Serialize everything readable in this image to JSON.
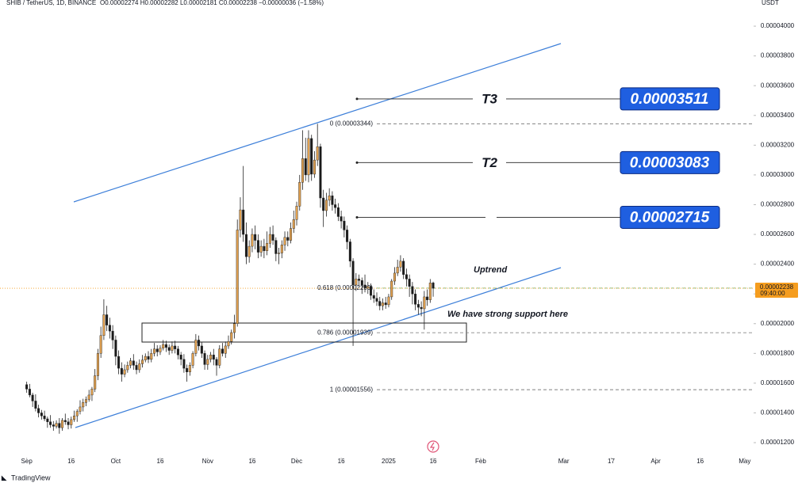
{
  "chart_data": {
    "type": "candlestick",
    "currency": "USDT",
    "header": "O0.00002274 H0.00002282 L0.00002181 C0.00002238 −0.00000036 (−1.58%)",
    "branding": "TradingView",
    "x": [
      "Sep 1",
      "Sep 2",
      "Sep 3",
      "Sep 4",
      "Sep 5",
      "Sep 6",
      "Sep 7",
      "Sep 8",
      "Sep 9",
      "Sep 10",
      "Sep 11",
      "Sep 12",
      "Sep 13",
      "Sep 14",
      "Sep 15",
      "Sep 16",
      "Sep 17",
      "Sep 18",
      "Sep 19",
      "Sep 20",
      "Sep 21",
      "Sep 22",
      "Sep 23",
      "Sep 24",
      "Sep 25",
      "Sep 26",
      "Sep 27",
      "Sep 28",
      "Sep 29",
      "Sep 30",
      "Oct 1",
      "Oct 2",
      "Oct 3",
      "Oct 4",
      "Oct 5",
      "Oct 6",
      "Oct 7",
      "Oct 8",
      "Oct 9",
      "Oct 10",
      "Oct 11",
      "Oct 12",
      "Oct 13",
      "Oct 14",
      "Oct 15",
      "Oct 16",
      "Oct 17",
      "Oct 18",
      "Oct 19",
      "Oct 20",
      "Oct 21",
      "Oct 22",
      "Oct 23",
      "Oct 24",
      "Oct 25",
      "Oct 26",
      "Oct 27",
      "Oct 28",
      "Oct 29",
      "Oct 30",
      "Oct 31",
      "Nov 1",
      "Nov 2",
      "Nov 3",
      "Nov 4",
      "Nov 5",
      "Nov 6",
      "Nov 7",
      "Nov 8",
      "Nov 9",
      "Nov 10",
      "Nov 11",
      "Nov 12",
      "Nov 13",
      "Nov 14",
      "Nov 15",
      "Nov 16",
      "Nov 17",
      "Nov 18",
      "Nov 19",
      "Nov 20",
      "Nov 21",
      "Nov 22",
      "Nov 23",
      "Nov 24",
      "Nov 25",
      "Nov 26",
      "Nov 27",
      "Nov 28",
      "Nov 29",
      "Nov 30",
      "Dec 1",
      "Dec 2",
      "Dec 3",
      "Dec 4",
      "Dec 5",
      "Dec 6",
      "Dec 7",
      "Dec 8",
      "Dec 9",
      "Dec 10",
      "Dec 11",
      "Dec 12",
      "Dec 13",
      "Dec 14",
      "Dec 15",
      "Dec 16",
      "Dec 17",
      "Dec 18",
      "Dec 19",
      "Dec 20",
      "Dec 21",
      "Dec 22",
      "Dec 23",
      "Dec 24",
      "Dec 25",
      "Dec 26",
      "Dec 27",
      "Dec 28",
      "Dec 29",
      "Dec 30",
      "Dec 31",
      "Jan 1",
      "Jan 2",
      "Jan 3",
      "Jan 4",
      "Jan 5",
      "Jan 6",
      "Jan 7",
      "Jan 8",
      "Jan 9",
      "Jan 10",
      "Jan 11",
      "Jan 12",
      "Jan 13",
      "Jan 14",
      "Jan 15",
      "Jan 16"
    ],
    "series": [
      {
        "name": "SHIB / TetherUS, 1D, BINANCE",
        "up_color": "#e0a050",
        "down_color": "#1a1a1a",
        "open": [
          1.59e-05,
          1.56e-05,
          1.52e-05,
          1.48e-05,
          1.43e-05,
          1.4e-05,
          1.38e-05,
          1.36e-05,
          1.34e-05,
          1.32e-05,
          1.31e-05,
          1.33e-05,
          1.3e-05,
          1.35e-05,
          1.34e-05,
          1.32e-05,
          1.355e-05,
          1.38e-05,
          1.41e-05,
          1.44e-05,
          1.47e-05,
          1.49e-05,
          1.52e-05,
          1.56e-05,
          1.65e-05,
          1.8e-05,
          1.92e-05,
          2.06e-05,
          1.99e-05,
          1.95e-05,
          1.89e-05,
          1.78e-05,
          1.7e-05,
          1.66e-05,
          1.69e-05,
          1.72e-05,
          1.75e-05,
          1.72e-05,
          1.69e-05,
          1.73e-05,
          1.755e-05,
          1.78e-05,
          1.76e-05,
          1.8e-05,
          1.83e-05,
          1.81e-05,
          1.835e-05,
          1.86e-05,
          1.84e-05,
          1.82e-05,
          1.85e-05,
          1.83e-05,
          1.79e-05,
          1.76e-05,
          1.7e-05,
          1.675e-05,
          1.72e-05,
          1.8e-05,
          1.89e-05,
          1.85e-05,
          1.8e-05,
          1.725e-05,
          1.76e-05,
          1.79e-05,
          1.76e-05,
          1.72e-05,
          1.83e-05,
          1.8e-05,
          1.85e-05,
          1.88e-05,
          1.94e-05,
          2e-05,
          2.63e-05,
          2.765e-05,
          2.6e-05,
          2.45e-05,
          2.52e-05,
          2.6e-05,
          2.56e-05,
          2.48e-05,
          2.52e-05,
          2.49e-05,
          2.54e-05,
          2.6e-05,
          2.56e-05,
          2.47e-05,
          2.475e-05,
          2.53e-05,
          2.58e-05,
          2.56e-05,
          2.64e-05,
          2.7e-05,
          2.79e-05,
          2.95e-05,
          3.11e-05,
          3e-05,
          3.245e-05,
          3.005e-05,
          3.1e-05,
          3.19e-05,
          2.845e-05,
          2.76e-05,
          2.83e-05,
          2.86e-05,
          2.8e-05,
          2.78e-05,
          2.72e-05,
          2.69e-05,
          2.63e-05,
          2.55e-05,
          2.42e-05,
          2.26e-05,
          2.3e-05,
          2.29e-05,
          2.26e-05,
          2.24e-05,
          2.25e-05,
          2.19e-05,
          2.17e-05,
          2.15e-05,
          2.12e-05,
          2.14e-05,
          2.127e-05,
          2.18e-05,
          2.286e-05,
          2.34e-05,
          2.38e-05,
          2.42e-05,
          2.33e-05,
          2.3e-05,
          2.25e-05,
          2.2e-05,
          2.13e-05,
          2.11e-05,
          2.1e-05,
          2.18e-05,
          2.16e-05,
          2.274e-05
        ],
        "high": [
          1.61e-05,
          1.595e-05,
          1.535e-05,
          1.525e-05,
          1.455e-05,
          1.42e-05,
          1.415e-05,
          1.375e-05,
          1.385e-05,
          1.345e-05,
          1.35e-05,
          1.365e-05,
          1.365e-05,
          1.395e-05,
          1.365e-05,
          1.375e-05,
          1.415e-05,
          1.425e-05,
          1.485e-05,
          1.495e-05,
          1.51e-05,
          1.555e-05,
          1.575e-05,
          1.695e-05,
          1.83e-05,
          1.98e-05,
          2.164e-05,
          2.12e-05,
          2.04e-05,
          1.99e-05,
          1.92e-05,
          1.82e-05,
          1.74e-05,
          1.725e-05,
          1.745e-05,
          1.77e-05,
          1.795e-05,
          1.745e-05,
          1.76e-05,
          1.79e-05,
          1.8e-05,
          1.815e-05,
          1.83e-05,
          1.87e-05,
          1.855e-05,
          1.855e-05,
          1.89e-05,
          1.885e-05,
          1.86e-05,
          1.88e-05,
          1.885e-05,
          1.85e-05,
          1.81e-05,
          1.795e-05,
          1.725e-05,
          1.74e-05,
          1.815e-05,
          1.93e-05,
          1.92e-05,
          1.875e-05,
          1.82e-05,
          1.79e-05,
          1.81e-05,
          1.83e-05,
          1.775e-05,
          1.855e-05,
          1.87e-05,
          1.88e-05,
          1.92e-05,
          1.96e-05,
          2.06e-05,
          2.7e-05,
          2.85e-05,
          3.06e-05,
          2.68e-05,
          2.56e-05,
          2.64e-05,
          2.66e-05,
          2.6e-05,
          2.56e-05,
          2.57e-05,
          2.62e-05,
          2.65e-05,
          2.66e-05,
          2.58e-05,
          2.51e-05,
          2.56e-05,
          2.62e-05,
          2.62e-05,
          2.68e-05,
          2.76e-05,
          2.82e-05,
          3e-05,
          3.3e-05,
          3.25e-05,
          3.3e-05,
          3.27e-05,
          3.16e-05,
          3.344e-05,
          3.21e-05,
          2.9e-05,
          2.88e-05,
          2.91e-05,
          2.89e-05,
          2.84e-05,
          2.81e-05,
          2.76e-05,
          2.72e-05,
          2.66e-05,
          2.57e-05,
          2.44e-05,
          2.34e-05,
          2.33e-05,
          2.31e-05,
          2.33e-05,
          2.28e-05,
          2.27e-05,
          2.23e-05,
          2.21e-05,
          2.18e-05,
          2.17e-05,
          2.18e-05,
          2.2e-05,
          2.3e-05,
          2.38e-05,
          2.43e-05,
          2.46e-05,
          2.44e-05,
          2.37e-05,
          2.33e-05,
          2.28e-05,
          2.23e-05,
          2.16e-05,
          2.15e-05,
          2.22e-05,
          2.23e-05,
          2.3e-05,
          2.282e-05
        ],
        "low": [
          1.535e-05,
          1.505e-05,
          1.44e-05,
          1.41e-05,
          1.37e-05,
          1.355e-05,
          1.345e-05,
          1.3e-05,
          1.3e-05,
          1.28e-05,
          1.295e-05,
          1.26e-05,
          1.28e-05,
          1.32e-05,
          1.29e-05,
          1.295e-05,
          1.34e-05,
          1.34e-05,
          1.39e-05,
          1.41e-05,
          1.445e-05,
          1.475e-05,
          1.48e-05,
          1.54e-05,
          1.62e-05,
          1.77e-05,
          1.89e-05,
          1.95e-05,
          1.9e-05,
          1.83e-05,
          1.72e-05,
          1.66e-05,
          1.61e-05,
          1.64e-05,
          1.67e-05,
          1.7e-05,
          1.69e-05,
          1.66e-05,
          1.67e-05,
          1.705e-05,
          1.74e-05,
          1.735e-05,
          1.74e-05,
          1.78e-05,
          1.78e-05,
          1.79e-05,
          1.82e-05,
          1.81e-05,
          1.79e-05,
          1.8e-05,
          1.8e-05,
          1.76e-05,
          1.72e-05,
          1.67e-05,
          1.61e-05,
          1.65e-05,
          1.7e-05,
          1.78e-05,
          1.82e-05,
          1.77e-05,
          1.69e-05,
          1.69e-05,
          1.74e-05,
          1.72e-05,
          1.65e-05,
          1.7e-05,
          1.78e-05,
          1.77e-05,
          1.83e-05,
          1.86e-05,
          1.9e-05,
          1.98e-05,
          2.58e-05,
          2.55e-05,
          2.4e-05,
          2.41e-05,
          2.48e-05,
          2.5e-05,
          2.44e-05,
          2.45e-05,
          2.44e-05,
          2.46e-05,
          2.51e-05,
          2.53e-05,
          2.42e-05,
          2.4e-05,
          2.44e-05,
          2.49e-05,
          2.52e-05,
          2.54e-05,
          2.61e-05,
          2.66e-05,
          2.76e-05,
          2.9e-05,
          2.96e-05,
          2.95e-05,
          2.96e-05,
          2.98e-05,
          3.06e-05,
          2.78e-05,
          2.65e-05,
          2.72e-05,
          2.79e-05,
          2.76e-05,
          2.74e-05,
          2.69e-05,
          2.64e-05,
          2.58e-05,
          2.5e-05,
          2.38e-05,
          1.85e-05,
          2.22e-05,
          2.25e-05,
          2.2e-05,
          2.21e-05,
          2.2e-05,
          2.16e-05,
          2.14e-05,
          2.12e-05,
          2.09e-05,
          2.09e-05,
          2.1e-05,
          2.11e-05,
          2.16e-05,
          2.26e-05,
          2.32e-05,
          2.35e-05,
          2.3e-05,
          2.25e-05,
          2.18e-05,
          2.13e-05,
          2.09e-05,
          2.06e-05,
          2.05e-05,
          1.96e-05,
          2.12e-05,
          2.14e-05,
          2.181e-05
        ],
        "close": [
          1.56e-05,
          1.52e-05,
          1.48e-05,
          1.43e-05,
          1.4e-05,
          1.38e-05,
          1.36e-05,
          1.34e-05,
          1.32e-05,
          1.31e-05,
          1.33e-05,
          1.3e-05,
          1.35e-05,
          1.34e-05,
          1.32e-05,
          1.355e-05,
          1.38e-05,
          1.41e-05,
          1.44e-05,
          1.47e-05,
          1.49e-05,
          1.52e-05,
          1.56e-05,
          1.65e-05,
          1.8e-05,
          1.92e-05,
          2.06e-05,
          1.99e-05,
          1.95e-05,
          1.89e-05,
          1.78e-05,
          1.7e-05,
          1.66e-05,
          1.69e-05,
          1.72e-05,
          1.75e-05,
          1.72e-05,
          1.69e-05,
          1.73e-05,
          1.755e-05,
          1.78e-05,
          1.76e-05,
          1.8e-05,
          1.83e-05,
          1.81e-05,
          1.835e-05,
          1.86e-05,
          1.84e-05,
          1.82e-05,
          1.85e-05,
          1.83e-05,
          1.79e-05,
          1.76e-05,
          1.7e-05,
          1.675e-05,
          1.72e-05,
          1.8e-05,
          1.89e-05,
          1.85e-05,
          1.8e-05,
          1.725e-05,
          1.76e-05,
          1.79e-05,
          1.76e-05,
          1.72e-05,
          1.83e-05,
          1.8e-05,
          1.85e-05,
          1.88e-05,
          1.94e-05,
          2e-05,
          2.63e-05,
          2.765e-05,
          2.6e-05,
          2.45e-05,
          2.52e-05,
          2.6e-05,
          2.56e-05,
          2.48e-05,
          2.52e-05,
          2.49e-05,
          2.54e-05,
          2.6e-05,
          2.56e-05,
          2.47e-05,
          2.475e-05,
          2.53e-05,
          2.58e-05,
          2.56e-05,
          2.64e-05,
          2.7e-05,
          2.79e-05,
          2.95e-05,
          3.11e-05,
          3e-05,
          3.245e-05,
          3.005e-05,
          3.1e-05,
          3.19e-05,
          2.845e-05,
          2.76e-05,
          2.83e-05,
          2.86e-05,
          2.8e-05,
          2.78e-05,
          2.72e-05,
          2.69e-05,
          2.63e-05,
          2.55e-05,
          2.42e-05,
          2.26e-05,
          2.3e-05,
          2.29e-05,
          2.26e-05,
          2.24e-05,
          2.25e-05,
          2.19e-05,
          2.17e-05,
          2.15e-05,
          2.12e-05,
          2.14e-05,
          2.127e-05,
          2.18e-05,
          2.286e-05,
          2.34e-05,
          2.38e-05,
          2.42e-05,
          2.33e-05,
          2.3e-05,
          2.25e-05,
          2.2e-05,
          2.13e-05,
          2.11e-05,
          2.1e-05,
          2.18e-05,
          2.16e-05,
          2.274e-05,
          2.238e-05
        ]
      }
    ],
    "xlim": [
      "Aug 23",
      "May 4"
    ],
    "xticks": [
      {
        "value": "Sep 1",
        "label": "Sep"
      },
      {
        "value": "Sep 16",
        "label": "16"
      },
      {
        "value": "Oct 1",
        "label": "Oct"
      },
      {
        "value": "Oct 16",
        "label": "16"
      },
      {
        "value": "Nov 1",
        "label": "Nov"
      },
      {
        "value": "Nov 16",
        "label": "16"
      },
      {
        "value": "Dec 1",
        "label": "Dec"
      },
      {
        "value": "Dec 16",
        "label": "16"
      },
      {
        "value": "Jan 1",
        "label": "2025"
      },
      {
        "value": "Jan 16",
        "label": "16"
      },
      {
        "value": "Feb 1",
        "label": "Feb"
      },
      {
        "value": "Mar 1",
        "label": "Mar"
      },
      {
        "value": "Mar 17",
        "label": "17"
      },
      {
        "value": "Apr 1",
        "label": "Apr"
      },
      {
        "value": "Apr 16",
        "label": "16"
      },
      {
        "value": "May 1",
        "label": "May"
      }
    ],
    "ylim": [
      1.099e-05,
      4.176e-05
    ],
    "yticks": [
      {
        "value": 1.2e-05,
        "label": "0.00001200"
      },
      {
        "value": 1.4e-05,
        "label": "0.00001400"
      },
      {
        "value": 1.6e-05,
        "label": "0.00001600"
      },
      {
        "value": 1.8e-05,
        "label": "0.00001800"
      },
      {
        "value": 2e-05,
        "label": "0.00002000"
      },
      {
        "value": 2.2e-05,
        "label": "0.00002200"
      },
      {
        "value": 2.4e-05,
        "label": "0.00002400"
      },
      {
        "value": 2.6e-05,
        "label": "0.00002600"
      },
      {
        "value": 2.8e-05,
        "label": "0.00002800"
      },
      {
        "value": 3e-05,
        "label": "0.00003000"
      },
      {
        "value": 3.2e-05,
        "label": "0.00003200"
      },
      {
        "value": 3.4e-05,
        "label": "0.00003400"
      },
      {
        "value": 3.6e-05,
        "label": "0.00003600"
      },
      {
        "value": 3.8e-05,
        "label": "0.00003800"
      },
      {
        "value": 4e-05,
        "label": "0.00004000"
      }
    ],
    "current_price": {
      "value": 2.238e-05,
      "label": "0.00002238",
      "countdown": "09:40:00",
      "color": "#f59d1f"
    },
    "fib_levels": [
      {
        "label": "0 (0.00003344)",
        "value": 3.344e-05,
        "color": "#555555"
      },
      {
        "label": "0.618 (0.00002239)",
        "value": 2.239e-05,
        "color": "#5ca85c"
      },
      {
        "label": "0.786 (0.00001939)",
        "value": 1.939e-05,
        "color": "#888888"
      },
      {
        "label": "1 (0.00001556)",
        "value": 1.556e-05,
        "color": "#555555"
      }
    ],
    "targets": [
      {
        "label": "T3",
        "value": 3.511e-05,
        "value_label": "0.00003511"
      },
      {
        "label": "T2",
        "value": 3.083e-05,
        "value_label": "0.00003083"
      },
      {
        "label": null,
        "value": 2.715e-05,
        "value_label": "0.00002715"
      }
    ],
    "annotations": [
      "Uptrend",
      "We have strong support here"
    ]
  }
}
